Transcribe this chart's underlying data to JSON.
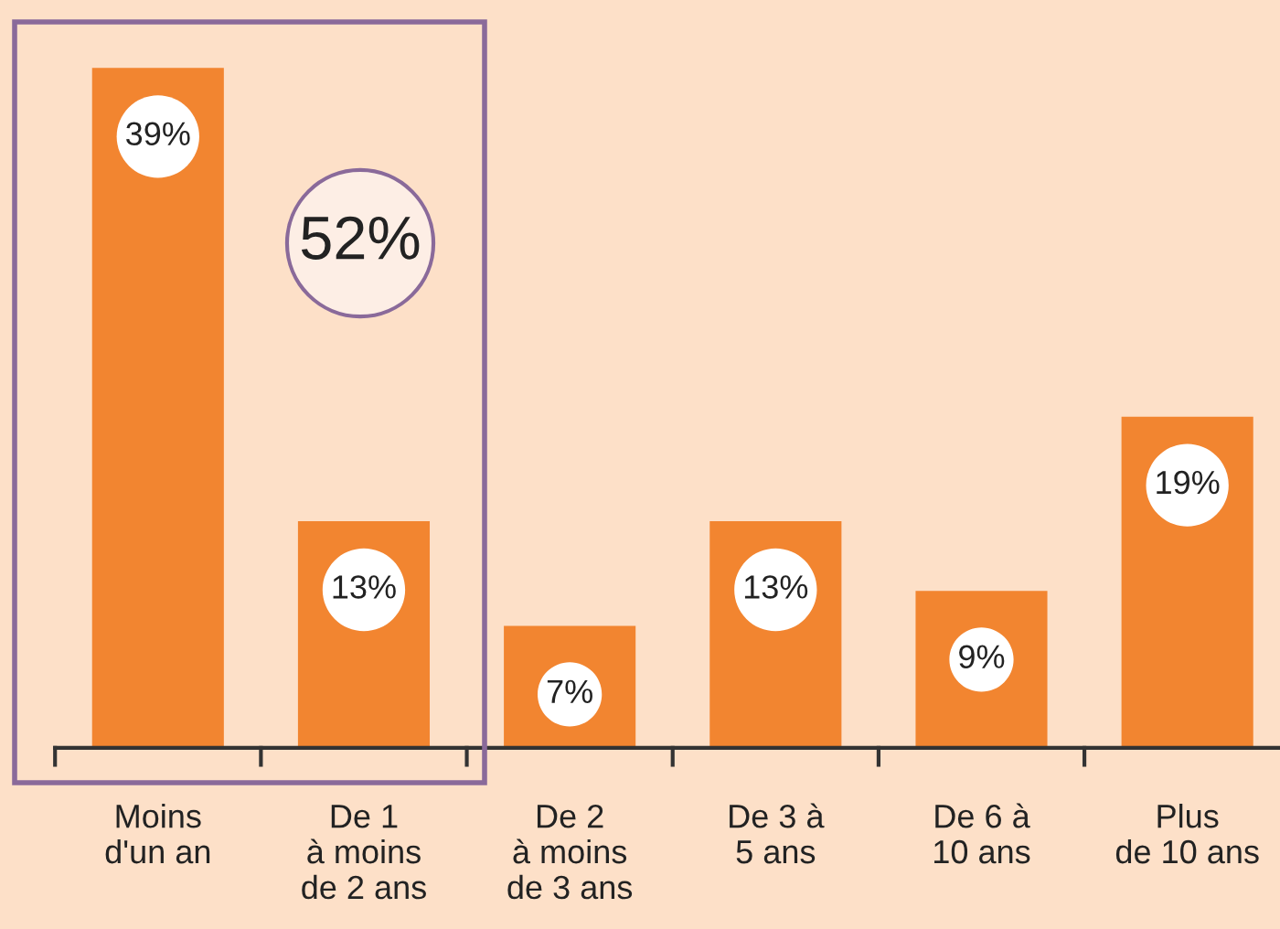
{
  "chart_data": {
    "type": "bar",
    "categories": [
      "Moins\nd'un an",
      "De 1\nà moins\nde 2 ans",
      "De 2\nà moins\nde 3 ans",
      "De 3 à\n5 ans",
      "De 6 à\n10 ans",
      "Plus\nde 10 ans"
    ],
    "values": [
      39,
      13,
      7,
      13,
      9,
      19
    ],
    "value_labels": [
      "39%",
      "13%",
      "7%",
      "13%",
      "9%",
      "19%"
    ],
    "color": "#f28530",
    "annotations": [
      "52%"
    ]
  }
}
